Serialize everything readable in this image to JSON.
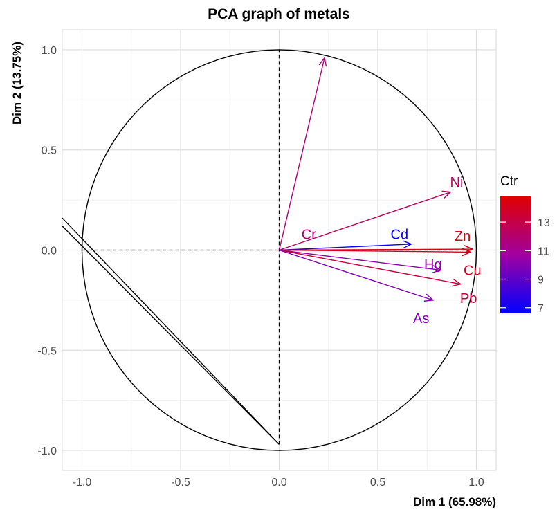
{
  "chart_data": {
    "type": "scatter",
    "subtype": "pca-variable-correlation-circle",
    "title": "PCA graph of metals",
    "xlabel": "Dim 1 (65.98%)",
    "ylabel": "Dim 2 (13.75%)",
    "xlim": [
      -1.1,
      1.1
    ],
    "ylim": [
      -1.1,
      1.1
    ],
    "xticks": [
      -1.0,
      -0.5,
      0.0,
      0.5,
      1.0
    ],
    "xtick_labels": [
      "-1.0",
      "-0.5",
      "0.0",
      "0.5",
      "1.0"
    ],
    "yticks": [
      -1.0,
      -0.5,
      0.0,
      0.5,
      1.0
    ],
    "ytick_labels": [
      "-1.0",
      "-0.5",
      "0.0",
      "0.5",
      "1.0"
    ],
    "grid": true,
    "legend": {
      "title": "Ctr",
      "placement": "right",
      "range": [
        6.6,
        14.8
      ],
      "ticks": [
        7,
        9,
        11,
        13
      ],
      "tick_labels": [
        "7",
        "9",
        "11",
        "13"
      ],
      "low_color": "#0000FF",
      "high_color": "#FF0000"
    },
    "variables": [
      {
        "name": "Cr",
        "x": 0.23,
        "y": 0.96,
        "ctr": 11.8,
        "label_dx": 0.15,
        "label_dy": 0.08
      },
      {
        "name": "Ni",
        "x": 0.87,
        "y": 0.29,
        "ctr": 12.5,
        "label_dx": 0.9,
        "label_dy": 0.34
      },
      {
        "name": "Cd",
        "x": 0.67,
        "y": 0.03,
        "ctr": 6.8,
        "label_dx": 0.61,
        "label_dy": 0.08
      },
      {
        "name": "Zn",
        "x": 0.98,
        "y": 0.005,
        "ctr": 14.3,
        "label_dx": 0.93,
        "label_dy": 0.07
      },
      {
        "name": "Hg",
        "x": 0.82,
        "y": -0.1,
        "ctr": 10.2,
        "label_dx": 0.78,
        "label_dy": -0.07
      },
      {
        "name": "Cu",
        "x": 0.97,
        "y": -0.01,
        "ctr": 14.0,
        "label_dx": 0.98,
        "label_dy": -0.1
      },
      {
        "name": "Pb",
        "x": 0.92,
        "y": -0.17,
        "ctr": 13.3,
        "label_dx": 0.96,
        "label_dy": -0.24
      },
      {
        "name": "As",
        "x": 0.78,
        "y": -0.25,
        "ctr": 9.8,
        "label_dx": 0.72,
        "label_dy": -0.34
      }
    ],
    "reference_lines": {
      "horizontal": {
        "x1": -1.0,
        "x2": 1.0,
        "y": 0.0
      },
      "vertical": {
        "x": 0.0,
        "y1": -0.97,
        "y2": 1.0
      },
      "style": "dashed"
    },
    "extra_lines": [
      {
        "x1": -1.1,
        "y1": 0.12,
        "x2": 0.0,
        "y2": -0.97
      },
      {
        "x1": -1.1,
        "y1": 0.16,
        "x2": 0.0,
        "y2": -0.97
      }
    ],
    "unit_circle": true
  }
}
